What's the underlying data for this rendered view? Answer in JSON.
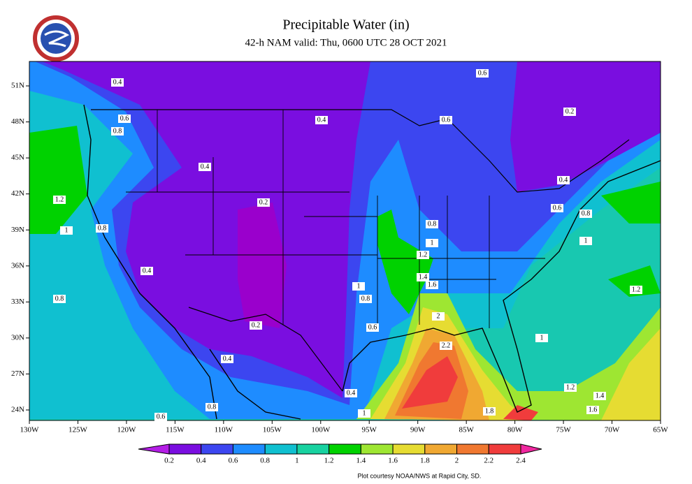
{
  "header": {
    "title": "Precipitable Water (in)",
    "subtitle": "42-h NAM valid: Thu, 0600 UTC 28 OCT 2021"
  },
  "axes": {
    "longitudes": [
      "130W",
      "125W",
      "120W",
      "115W",
      "110W",
      "105W",
      "100W",
      "95W",
      "90W",
      "85W",
      "80W",
      "75W",
      "70W",
      "65W"
    ],
    "latitudes": [
      "51N",
      "48N",
      "45N",
      "42N",
      "39N",
      "36N",
      "33N",
      "30N",
      "27N",
      "24N"
    ]
  },
  "contour_labels": [
    "0.4",
    "0.4",
    "0.6",
    "0.2",
    "0.6",
    "0.6",
    "0.8",
    "0.4",
    "1.2",
    "0.2",
    "0.4",
    "0.6",
    "0.8",
    "1",
    "0.8",
    "0.8",
    "1",
    "1",
    "1.2",
    "0.4",
    "1.4",
    "1.6",
    "1",
    "0.8",
    "0.8",
    "1.2",
    "2",
    "0.2",
    "0.6",
    "1",
    "2.2",
    "0.4",
    "0.4",
    "1.2",
    "1.4",
    "0.6",
    "1.8",
    "1.6",
    "1",
    "0.8"
  ],
  "colorbar": {
    "labels": [
      "0.2",
      "0.4",
      "0.6",
      "0.8",
      "1",
      "1.2",
      "1.4",
      "1.6",
      "1.8",
      "2",
      "2.2",
      "2.4"
    ],
    "colors": [
      "#b41ee6",
      "#7a0ee0",
      "#3c46f0",
      "#1e8cff",
      "#10c0d0",
      "#18d2a0",
      "#00d200",
      "#9ee632",
      "#e6dc32",
      "#f0a832",
      "#f07830",
      "#f03c3c",
      "#f028a0"
    ]
  },
  "credit": "Plot courtesy NOAA/NWS at Rapid City, SD."
}
